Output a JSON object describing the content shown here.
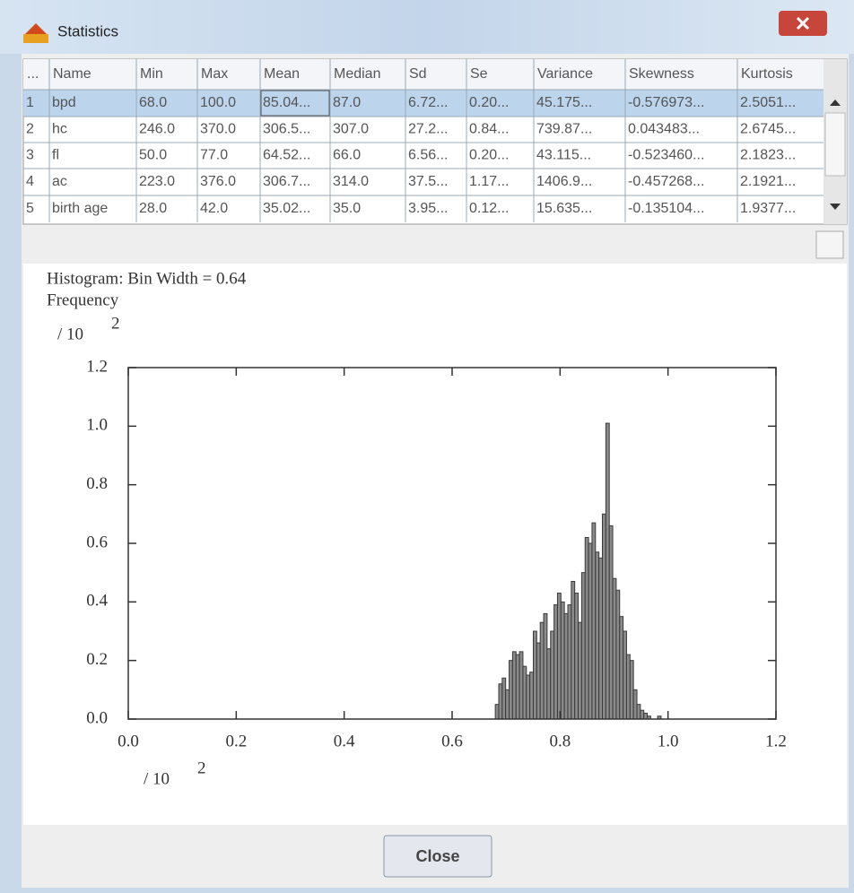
{
  "window": {
    "title": "Statistics",
    "close_button": "Close"
  },
  "table": {
    "columns": [
      "...",
      "Name",
      "Min",
      "Max",
      "Mean",
      "Median",
      "Sd",
      "Se",
      "Variance",
      "Skewness",
      "Kurtosis"
    ],
    "rows": [
      [
        "1",
        "bpd",
        "68.0",
        "100.0",
        "85.04...",
        "87.0",
        "6.72...",
        "0.20...",
        "45.175...",
        "-0.576973...",
        "2.5051..."
      ],
      [
        "2",
        "hc",
        "246.0",
        "370.0",
        "306.5...",
        "307.0",
        "27.2...",
        "0.84...",
        "739.87...",
        "0.043483...",
        "2.6745..."
      ],
      [
        "3",
        "fl",
        "50.0",
        "77.0",
        "64.52...",
        "66.0",
        "6.56...",
        "0.20...",
        "43.115...",
        "-0.523460...",
        "2.1823..."
      ],
      [
        "4",
        "ac",
        "223.0",
        "376.0",
        "306.7...",
        "314.0",
        "37.5...",
        "1.17...",
        "1406.9...",
        "-0.457268...",
        "2.1921..."
      ],
      [
        "5",
        "birth age",
        "28.0",
        "42.0",
        "35.02...",
        "35.0",
        "3.95...",
        "0.12...",
        "15.635...",
        "-0.135104...",
        "1.9377..."
      ]
    ]
  },
  "chart_data": {
    "type": "histogram",
    "title": "Histogram:  Bin Width = 0.64",
    "y_label": "Frequency",
    "y_unit": "/  10",
    "y_unit_exp": "2",
    "x_unit": "/  10",
    "x_unit_exp": "2",
    "bins": [
      0.68,
      0.6864,
      0.6928,
      0.6992,
      0.7056,
      0.712,
      0.7184,
      0.7248,
      0.7312,
      0.7376,
      0.744,
      0.7504,
      0.7568,
      0.7632,
      0.7696,
      0.776,
      0.7824,
      0.7888,
      0.7952,
      0.8016,
      0.808,
      0.8144,
      0.8208,
      0.8272,
      0.8336,
      0.84,
      0.8464,
      0.8528,
      0.8592,
      0.8656,
      0.872,
      0.8784,
      0.8848,
      0.8912,
      0.8976,
      0.904,
      0.9104,
      0.9168,
      0.9232,
      0.9296,
      0.936,
      0.9424,
      0.9488,
      0.9552,
      0.9616,
      0.968,
      0.9744,
      0.9808,
      0.9872,
      0.9936,
      1.0
    ],
    "counts": [
      0.05,
      0.12,
      0.14,
      0.1,
      0.2,
      0.23,
      0.22,
      0.23,
      0.18,
      0.15,
      0.16,
      0.3,
      0.26,
      0.33,
      0.36,
      0.24,
      0.3,
      0.39,
      0.43,
      0.4,
      0.36,
      0.39,
      0.47,
      0.43,
      0.33,
      0.5,
      0.62,
      0.6,
      0.67,
      0.57,
      0.55,
      0.7,
      1.01,
      0.66,
      0.48,
      0.44,
      0.35,
      0.3,
      0.22,
      0.2,
      0.1,
      0.05,
      0.03,
      0.02,
      0.01,
      0,
      0,
      0.01,
      0,
      0
    ],
    "color": "#8a8a8a",
    "xlim": [
      0,
      1.2
    ],
    "ylim": [
      0,
      1.2
    ],
    "xticks": [
      {
        "value": 0,
        "label": "0.0"
      },
      0.2,
      0.4,
      0.6,
      0.8,
      {
        "value": 1,
        "label": "1.0"
      },
      1.2
    ],
    "yticks": [
      {
        "value": 0,
        "label": "0.0"
      },
      0.2,
      0.4,
      0.6,
      0.8,
      {
        "value": 1,
        "label": "1.0"
      },
      1.2
    ]
  }
}
